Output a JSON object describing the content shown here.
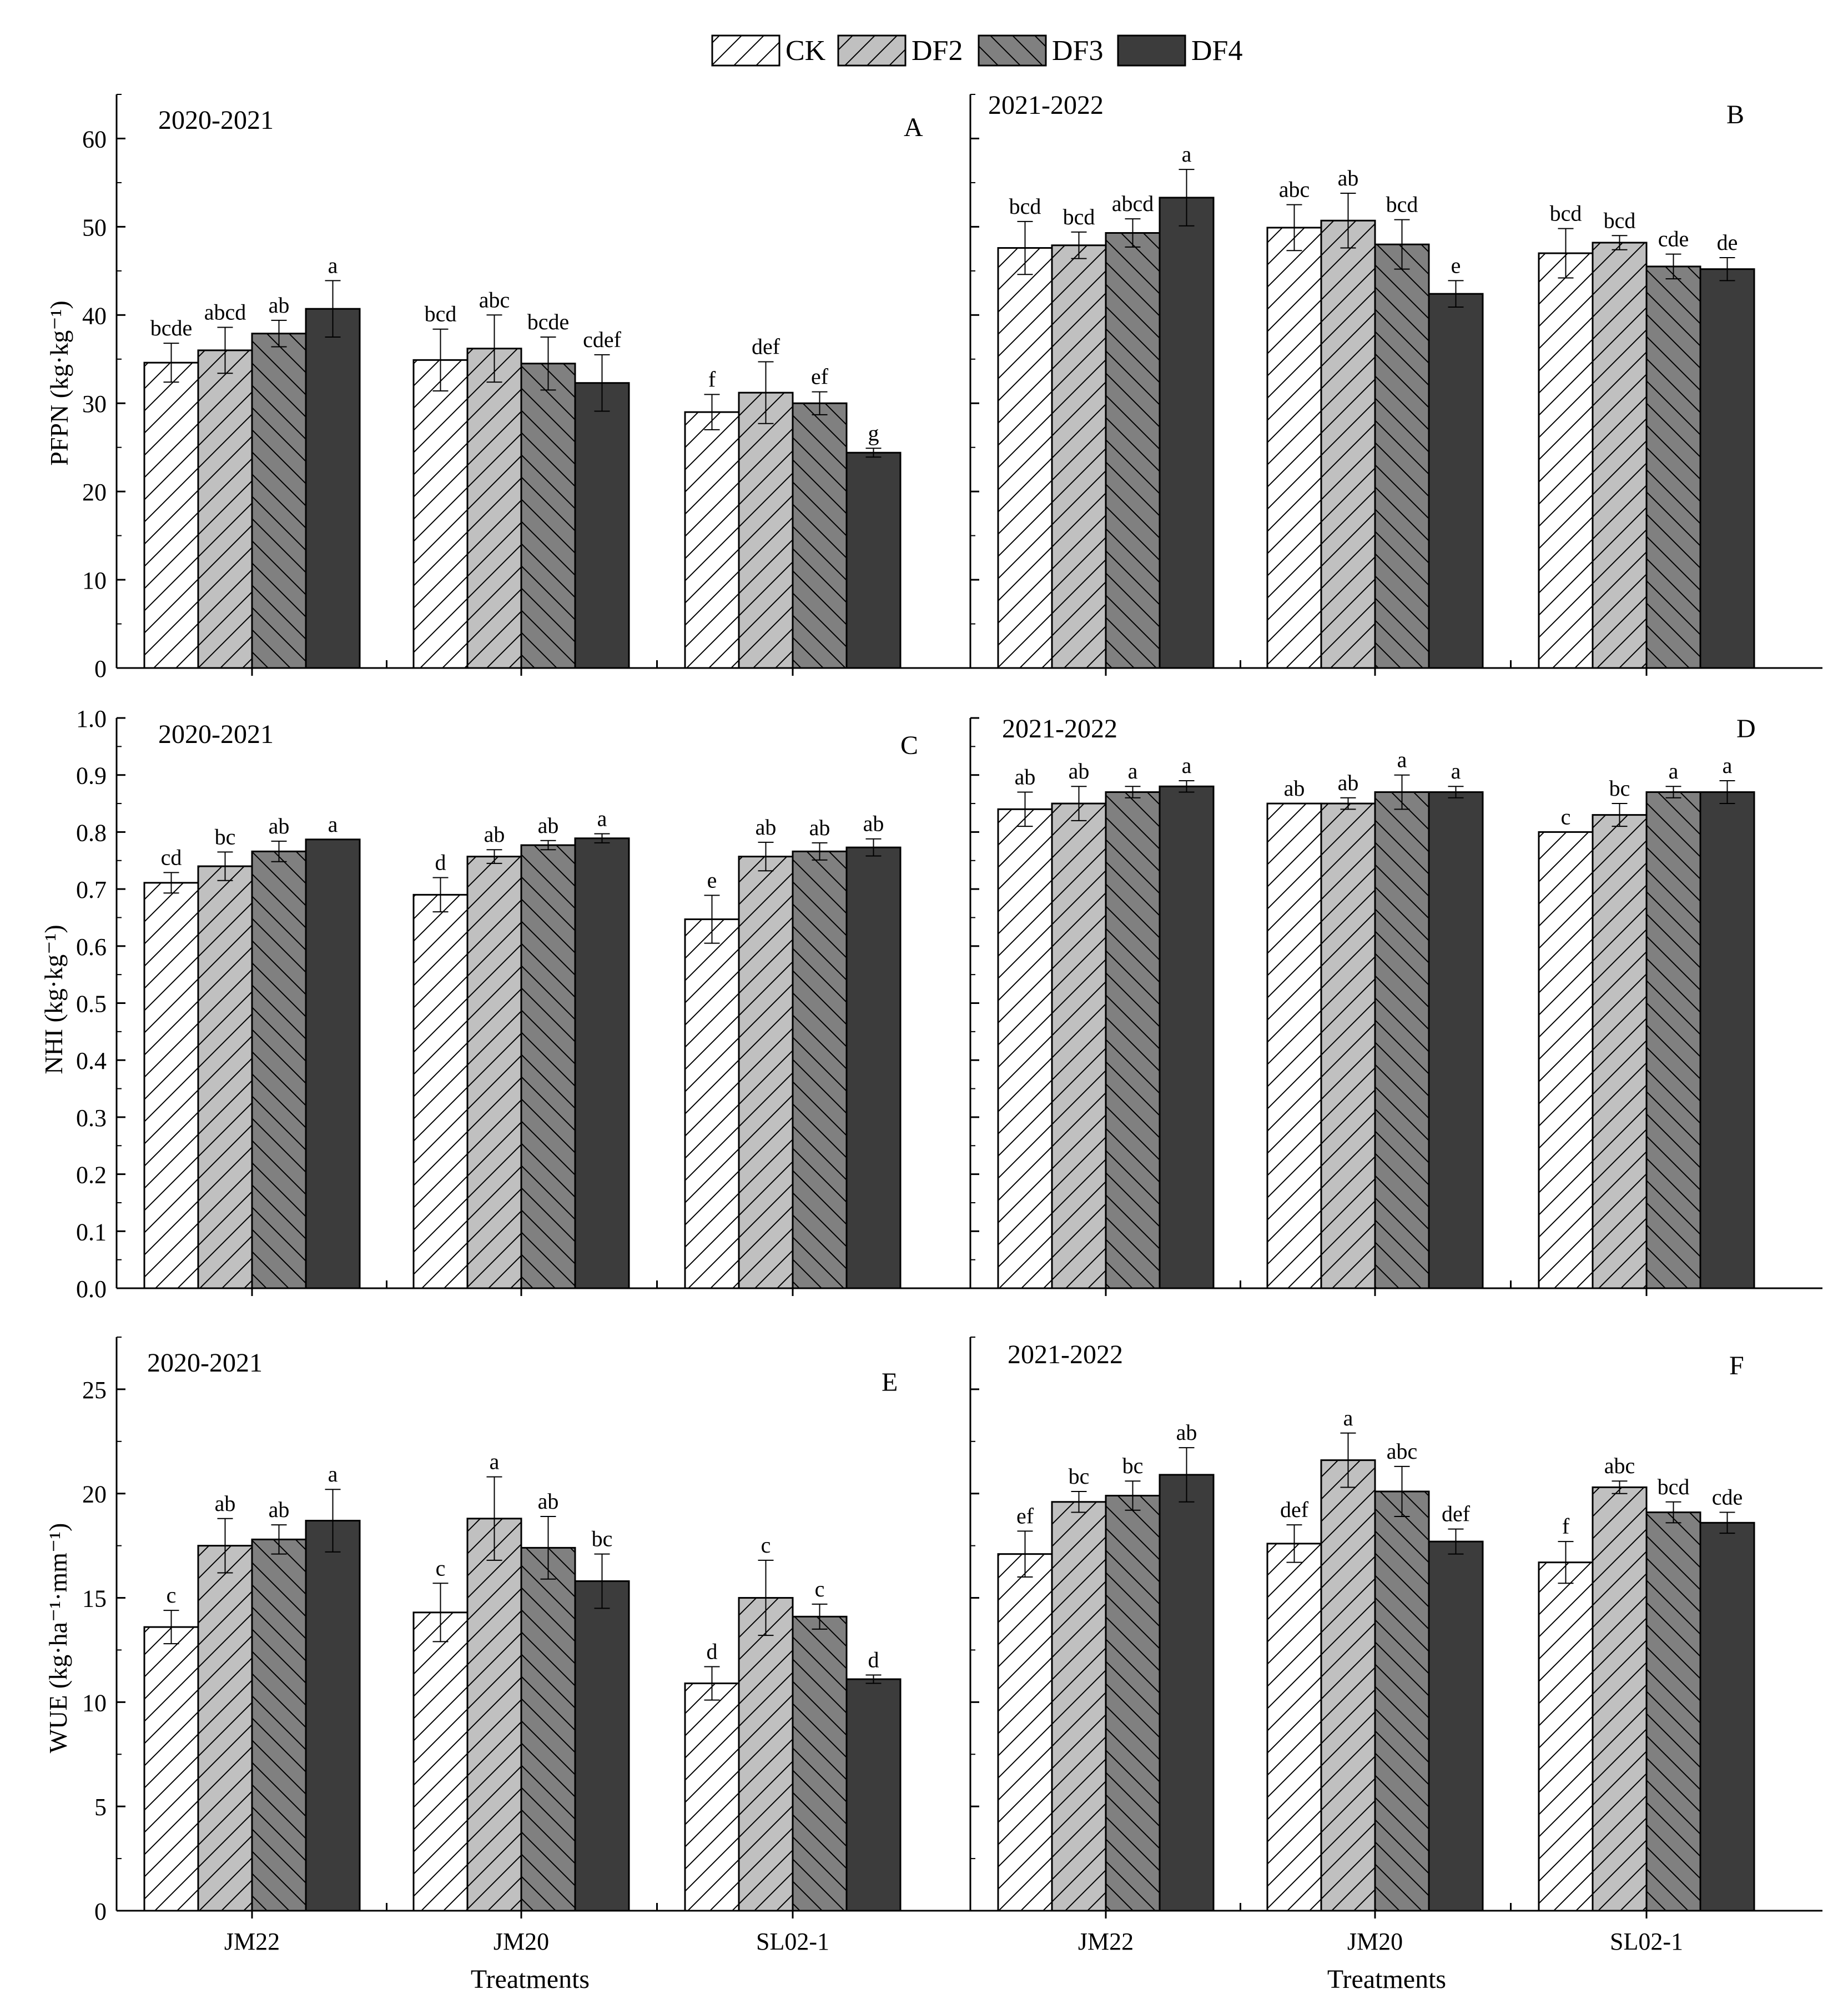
{
  "legend": {
    "items": [
      {
        "label": "CK",
        "key": "ck"
      },
      {
        "label": "DF2",
        "key": "df2"
      },
      {
        "label": "DF3",
        "key": "df3"
      },
      {
        "label": "DF4",
        "key": "df4"
      }
    ]
  },
  "styles": {
    "ck": {
      "fill": "#ffffff",
      "hatch": "forward",
      "line": "#000000"
    },
    "df2": {
      "fill": "#c0c0c0",
      "hatch": "forward",
      "line": "#000000"
    },
    "df3": {
      "fill": "#808080",
      "hatch": "back",
      "line": "#000000"
    },
    "df4": {
      "fill": "#3c3c3c",
      "hatch": "none",
      "line": "#000000"
    }
  },
  "xlabel": "Treatments",
  "chart_data": [
    {
      "id": "A",
      "type": "bar",
      "panel_label": "A",
      "season": "2020-2021",
      "ylabel": "PFPN (kg·kg⁻¹)",
      "ylim": [
        0,
        65
      ],
      "yticks": [
        0,
        10,
        20,
        30,
        40,
        50,
        60
      ],
      "show_y_ticks": true,
      "categories": [
        "JM22",
        "JM20",
        "SL02-1"
      ],
      "show_x_labels": false,
      "series": [
        {
          "name": "CK",
          "values": [
            34.6,
            34.9,
            29.0
          ],
          "errors": [
            2.2,
            3.5,
            2.0
          ],
          "letters": [
            "bcde",
            "bcd",
            "f"
          ]
        },
        {
          "name": "DF2",
          "values": [
            36.0,
            36.2,
            31.2
          ],
          "errors": [
            2.6,
            3.8,
            3.5
          ],
          "letters": [
            "abcd",
            "abc",
            "def"
          ]
        },
        {
          "name": "DF3",
          "values": [
            37.9,
            34.5,
            30.0
          ],
          "errors": [
            1.5,
            3.0,
            1.3
          ],
          "letters": [
            "ab",
            "bcde",
            "ef"
          ]
        },
        {
          "name": "DF4",
          "values": [
            40.7,
            32.3,
            24.4
          ],
          "errors": [
            3.2,
            3.2,
            0.5
          ],
          "letters": [
            "a",
            "cdef",
            "g"
          ]
        }
      ]
    },
    {
      "id": "B",
      "type": "bar",
      "panel_label": "B",
      "season": "2021-2022",
      "ylabel": "",
      "ylim": [
        0,
        65
      ],
      "yticks": [
        0,
        10,
        20,
        30,
        40,
        50,
        60
      ],
      "show_y_ticks": false,
      "categories": [
        "JM22",
        "JM20",
        "SL02-1"
      ],
      "show_x_labels": false,
      "series": [
        {
          "name": "CK",
          "values": [
            47.6,
            49.9,
            47.0
          ],
          "errors": [
            3.0,
            2.6,
            2.8
          ],
          "letters": [
            "bcd",
            "abc",
            "bcd"
          ]
        },
        {
          "name": "DF2",
          "values": [
            47.9,
            50.7,
            48.2
          ],
          "errors": [
            1.5,
            3.1,
            0.8
          ],
          "letters": [
            "bcd",
            "ab",
            "bcd"
          ]
        },
        {
          "name": "DF3",
          "values": [
            49.3,
            48.0,
            45.5
          ],
          "errors": [
            1.6,
            2.8,
            1.4
          ],
          "letters": [
            "abcd",
            "bcd",
            "cde"
          ]
        },
        {
          "name": "DF4",
          "values": [
            53.3,
            42.4,
            45.2
          ],
          "errors": [
            3.2,
            1.5,
            1.3
          ],
          "letters": [
            "a",
            "e",
            "de"
          ]
        }
      ]
    },
    {
      "id": "C",
      "type": "bar",
      "panel_label": "C",
      "season": "2020-2021",
      "ylabel": "NHI (kg·kg⁻¹)",
      "ylim": [
        0,
        1.0
      ],
      "yticks": [
        0.0,
        0.1,
        0.2,
        0.3,
        0.4,
        0.5,
        0.6,
        0.7,
        0.8,
        0.9,
        1.0
      ],
      "show_y_ticks": true,
      "categories": [
        "JM22",
        "JM20",
        "SL02-1"
      ],
      "show_x_labels": false,
      "series": [
        {
          "name": "CK",
          "values": [
            0.711,
            0.69,
            0.647
          ],
          "errors": [
            0.018,
            0.03,
            0.042
          ],
          "letters": [
            "cd",
            "d",
            "e"
          ]
        },
        {
          "name": "DF2",
          "values": [
            0.74,
            0.757,
            0.757
          ],
          "errors": [
            0.025,
            0.012,
            0.025
          ],
          "letters": [
            "bc",
            "ab",
            "ab"
          ]
        },
        {
          "name": "DF3",
          "values": [
            0.766,
            0.777,
            0.766
          ],
          "errors": [
            0.018,
            0.008,
            0.015
          ],
          "letters": [
            "ab",
            "ab",
            "ab"
          ]
        },
        {
          "name": "DF4",
          "values": [
            0.787,
            0.789,
            0.773
          ],
          "errors": [
            0.0,
            0.008,
            0.015
          ],
          "letters": [
            "a",
            "a",
            "ab"
          ]
        }
      ]
    },
    {
      "id": "D",
      "type": "bar",
      "panel_label": "D",
      "season": "2021-2022",
      "ylabel": "",
      "ylim": [
        0,
        1.0
      ],
      "yticks": [
        0.0,
        0.1,
        0.2,
        0.3,
        0.4,
        0.5,
        0.6,
        0.7,
        0.8,
        0.9,
        1.0
      ],
      "show_y_ticks": false,
      "categories": [
        "JM22",
        "JM20",
        "SL02-1"
      ],
      "show_x_labels": false,
      "series": [
        {
          "name": "CK",
          "values": [
            0.84,
            0.85,
            0.8
          ],
          "errors": [
            0.03,
            0.0,
            0.0
          ],
          "letters": [
            "ab",
            "ab",
            "c"
          ]
        },
        {
          "name": "DF2",
          "values": [
            0.85,
            0.85,
            0.83
          ],
          "errors": [
            0.03,
            0.01,
            0.02
          ],
          "letters": [
            "ab",
            "ab",
            "bc"
          ]
        },
        {
          "name": "DF3",
          "values": [
            0.87,
            0.87,
            0.87
          ],
          "errors": [
            0.01,
            0.03,
            0.01
          ],
          "letters": [
            "a",
            "a",
            "a"
          ]
        },
        {
          "name": "DF4",
          "values": [
            0.88,
            0.87,
            0.87
          ],
          "errors": [
            0.01,
            0.01,
            0.02
          ],
          "letters": [
            "a",
            "a",
            "a"
          ]
        }
      ]
    },
    {
      "id": "E",
      "type": "bar",
      "panel_label": "E",
      "season": "2020-2021",
      "ylabel": "WUE (kg·ha⁻¹·mm⁻¹)",
      "ylim": [
        0,
        27.5
      ],
      "yticks": [
        0,
        5,
        10,
        15,
        20,
        25
      ],
      "show_y_ticks": true,
      "categories": [
        "JM22",
        "JM20",
        "SL02-1"
      ],
      "show_x_labels": true,
      "series": [
        {
          "name": "CK",
          "values": [
            13.6,
            14.3,
            10.9
          ],
          "errors": [
            0.8,
            1.4,
            0.8
          ],
          "letters": [
            "c",
            "c",
            "d"
          ]
        },
        {
          "name": "DF2",
          "values": [
            17.5,
            18.8,
            15.0
          ],
          "errors": [
            1.3,
            2.0,
            1.8
          ],
          "letters": [
            "ab",
            "a",
            "c"
          ]
        },
        {
          "name": "DF3",
          "values": [
            17.8,
            17.4,
            14.1
          ],
          "errors": [
            0.7,
            1.5,
            0.6
          ],
          "letters": [
            "ab",
            "ab",
            "c"
          ]
        },
        {
          "name": "DF4",
          "values": [
            18.7,
            15.8,
            11.1
          ],
          "errors": [
            1.5,
            1.3,
            0.2
          ],
          "letters": [
            "a",
            "bc",
            "d"
          ]
        }
      ]
    },
    {
      "id": "F",
      "type": "bar",
      "panel_label": "F",
      "season": "2021-2022",
      "ylabel": "",
      "ylim": [
        0,
        27.5
      ],
      "yticks": [
        0,
        5,
        10,
        15,
        20,
        25
      ],
      "show_y_ticks": false,
      "categories": [
        "JM22",
        "JM20",
        "SL02-1"
      ],
      "show_x_labels": true,
      "series": [
        {
          "name": "CK",
          "values": [
            17.1,
            17.6,
            16.7
          ],
          "errors": [
            1.1,
            0.9,
            1.0
          ],
          "letters": [
            "ef",
            "def",
            "f"
          ]
        },
        {
          "name": "DF2",
          "values": [
            19.6,
            21.6,
            20.3
          ],
          "errors": [
            0.5,
            1.3,
            0.3
          ],
          "letters": [
            "bc",
            "a",
            "abc"
          ]
        },
        {
          "name": "DF3",
          "values": [
            19.9,
            20.1,
            19.1
          ],
          "errors": [
            0.7,
            1.2,
            0.5
          ],
          "letters": [
            "bc",
            "abc",
            "bcd"
          ]
        },
        {
          "name": "DF4",
          "values": [
            20.9,
            17.7,
            18.6
          ],
          "errors": [
            1.3,
            0.6,
            0.5
          ],
          "letters": [
            "ab",
            "def",
            "cde"
          ]
        }
      ]
    }
  ]
}
